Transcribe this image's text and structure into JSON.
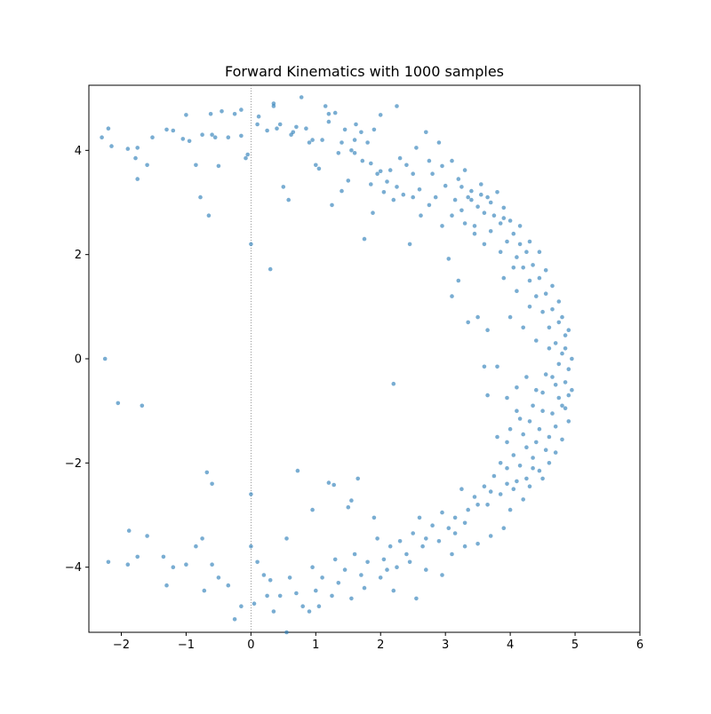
{
  "chart_data": {
    "type": "scatter",
    "title": "Forward Kinematics with 1000 samples",
    "xlabel": "",
    "ylabel": "",
    "xlim": [
      -2.5,
      6.0
    ],
    "ylim": [
      -5.25,
      5.25
    ],
    "xticks": [
      -2,
      -1,
      0,
      1,
      2,
      3,
      4,
      5,
      6
    ],
    "yticks": [
      -4,
      -2,
      0,
      2,
      4
    ],
    "grid": false,
    "legend": "none",
    "series": [
      {
        "color": "#1f77b4",
        "opacity": 0.6,
        "points": [
          [
            -2.3,
            4.25
          ],
          [
            -2.2,
            4.42
          ],
          [
            -2.15,
            4.08
          ],
          [
            -1.9,
            4.03
          ],
          [
            -1.75,
            4.05
          ],
          [
            -1.78,
            3.85
          ],
          [
            -1.75,
            3.45
          ],
          [
            -1.6,
            3.72
          ],
          [
            -1.52,
            4.25
          ],
          [
            -1.3,
            4.4
          ],
          [
            -1.2,
            4.38
          ],
          [
            -1.05,
            4.22
          ],
          [
            -1.0,
            4.68
          ],
          [
            -0.95,
            4.18
          ],
          [
            -0.85,
            3.72
          ],
          [
            -0.78,
            3.1
          ],
          [
            -0.75,
            4.3
          ],
          [
            -0.65,
            2.75
          ],
          [
            -0.62,
            4.7
          ],
          [
            -0.6,
            4.3
          ],
          [
            -0.55,
            4.25
          ],
          [
            -0.5,
            3.7
          ],
          [
            -0.45,
            4.75
          ],
          [
            -0.35,
            4.25
          ],
          [
            -0.25,
            4.7
          ],
          [
            -0.15,
            4.28
          ],
          [
            -0.15,
            4.78
          ],
          [
            -0.08,
            3.85
          ],
          [
            -0.05,
            3.92
          ],
          [
            0.0,
            2.2
          ],
          [
            0.12,
            4.65
          ],
          [
            0.25,
            4.38
          ],
          [
            0.3,
            1.72
          ],
          [
            0.35,
            4.9
          ],
          [
            0.4,
            4.42
          ],
          [
            0.45,
            4.5
          ],
          [
            0.5,
            3.3
          ],
          [
            0.58,
            3.05
          ],
          [
            0.62,
            4.3
          ],
          [
            0.7,
            4.45
          ],
          [
            0.78,
            5.02
          ],
          [
            0.85,
            4.42
          ],
          [
            0.95,
            4.2
          ],
          [
            1.0,
            3.72
          ],
          [
            1.05,
            3.65
          ],
          [
            1.1,
            4.2
          ],
          [
            1.15,
            4.85
          ],
          [
            1.2,
            4.55
          ],
          [
            1.25,
            2.95
          ],
          [
            1.3,
            4.72
          ],
          [
            1.35,
            3.95
          ],
          [
            1.4,
            3.22
          ],
          [
            1.45,
            4.4
          ],
          [
            1.5,
            3.42
          ],
          [
            1.55,
            4.0
          ],
          [
            1.6,
            4.2
          ],
          [
            1.62,
            4.5
          ],
          [
            1.7,
            4.35
          ],
          [
            1.72,
            3.8
          ],
          [
            1.75,
            2.3
          ],
          [
            1.8,
            4.15
          ],
          [
            1.85,
            3.75
          ],
          [
            1.88,
            2.8
          ],
          [
            1.9,
            4.4
          ],
          [
            1.95,
            3.55
          ],
          [
            2.0,
            4.68
          ],
          [
            2.05,
            3.2
          ],
          [
            2.1,
            3.4
          ],
          [
            2.15,
            3.62
          ],
          [
            2.2,
            3.05
          ],
          [
            2.25,
            4.85
          ],
          [
            2.3,
            3.85
          ],
          [
            2.35,
            3.15
          ],
          [
            2.4,
            3.72
          ],
          [
            2.45,
            2.2
          ],
          [
            2.5,
            3.55
          ],
          [
            2.55,
            4.05
          ],
          [
            2.6,
            3.25
          ],
          [
            2.62,
            2.75
          ],
          [
            2.7,
            4.35
          ],
          [
            2.75,
            3.8
          ],
          [
            2.8,
            3.55
          ],
          [
            2.85,
            3.1
          ],
          [
            2.9,
            4.15
          ],
          [
            2.95,
            3.7
          ],
          [
            3.0,
            3.32
          ],
          [
            3.05,
            1.92
          ],
          [
            3.1,
            3.8
          ],
          [
            3.15,
            3.05
          ],
          [
            3.2,
            3.45
          ],
          [
            3.25,
            2.85
          ],
          [
            3.3,
            3.62
          ],
          [
            3.35,
            3.1
          ],
          [
            3.4,
            3.22
          ],
          [
            3.45,
            2.55
          ],
          [
            3.5,
            2.92
          ],
          [
            3.55,
            3.35
          ],
          [
            3.6,
            2.8
          ],
          [
            3.65,
            3.1
          ],
          [
            3.7,
            2.45
          ],
          [
            3.75,
            2.75
          ],
          [
            3.8,
            3.2
          ],
          [
            3.85,
            2.6
          ],
          [
            3.9,
            2.9
          ],
          [
            3.95,
            2.25
          ],
          [
            4.0,
            2.65
          ],
          [
            4.05,
            2.4
          ],
          [
            4.1,
            1.95
          ],
          [
            4.15,
            2.2
          ],
          [
            4.2,
            1.75
          ],
          [
            4.25,
            2.05
          ],
          [
            4.3,
            1.5
          ],
          [
            4.35,
            1.8
          ],
          [
            4.4,
            1.2
          ],
          [
            4.45,
            1.55
          ],
          [
            4.5,
            0.9
          ],
          [
            4.55,
            1.25
          ],
          [
            4.6,
            0.6
          ],
          [
            4.65,
            0.95
          ],
          [
            4.7,
            0.3
          ],
          [
            4.75,
            0.7
          ],
          [
            4.8,
            0.1
          ],
          [
            4.85,
            0.45
          ],
          [
            4.9,
            -0.2
          ],
          [
            4.95,
            0.0
          ],
          [
            3.2,
            1.5
          ],
          [
            3.1,
            1.2
          ],
          [
            3.5,
            0.8
          ],
          [
            3.35,
            0.7
          ],
          [
            3.65,
            0.55
          ],
          [
            3.8,
            -0.15
          ],
          [
            3.65,
            -0.7
          ],
          [
            3.95,
            -0.75
          ],
          [
            4.1,
            -0.55
          ],
          [
            4.25,
            -0.35
          ],
          [
            4.4,
            -0.6
          ],
          [
            4.55,
            -0.3
          ],
          [
            4.7,
            -0.5
          ],
          [
            4.85,
            -0.45
          ],
          [
            4.9,
            -0.7
          ],
          [
            3.6,
            -0.15
          ],
          [
            2.2,
            -0.48
          ],
          [
            4.1,
            -1.0
          ],
          [
            4.3,
            -1.2
          ],
          [
            4.5,
            -1.0
          ],
          [
            4.7,
            -1.3
          ],
          [
            4.8,
            -0.9
          ],
          [
            4.6,
            -1.5
          ],
          [
            4.4,
            -1.6
          ],
          [
            4.2,
            -1.45
          ],
          [
            4.0,
            -1.35
          ],
          [
            3.8,
            -1.5
          ],
          [
            4.35,
            -1.9
          ],
          [
            4.55,
            -1.75
          ],
          [
            4.15,
            -2.05
          ],
          [
            3.95,
            -2.1
          ],
          [
            3.75,
            -2.25
          ],
          [
            4.25,
            -2.3
          ],
          [
            4.45,
            -2.15
          ],
          [
            4.05,
            -2.5
          ],
          [
            3.85,
            -2.6
          ],
          [
            3.6,
            -2.45
          ],
          [
            3.65,
            -2.8
          ],
          [
            3.45,
            -2.65
          ],
          [
            3.25,
            -2.5
          ],
          [
            3.35,
            -2.9
          ],
          [
            3.15,
            -3.05
          ],
          [
            2.95,
            -2.95
          ],
          [
            3.05,
            -3.25
          ],
          [
            2.8,
            -3.2
          ],
          [
            2.6,
            -3.05
          ],
          [
            2.7,
            -3.45
          ],
          [
            2.5,
            -3.35
          ],
          [
            2.3,
            -3.5
          ],
          [
            2.4,
            -3.75
          ],
          [
            2.15,
            -3.6
          ],
          [
            1.95,
            -3.45
          ],
          [
            2.05,
            -3.85
          ],
          [
            1.8,
            -3.9
          ],
          [
            1.6,
            -3.75
          ],
          [
            1.7,
            -4.15
          ],
          [
            1.45,
            -4.05
          ],
          [
            1.3,
            -3.85
          ],
          [
            1.35,
            -4.3
          ],
          [
            1.1,
            -4.2
          ],
          [
            0.95,
            -4.0
          ],
          [
            1.0,
            -4.45
          ],
          [
            0.8,
            -4.75
          ],
          [
            0.6,
            -4.2
          ],
          [
            0.55,
            -5.25
          ],
          [
            0.45,
            -4.55
          ],
          [
            0.35,
            -4.85
          ],
          [
            0.25,
            -4.55
          ],
          [
            0.2,
            -4.15
          ],
          [
            0.1,
            -3.9
          ],
          [
            0.05,
            -4.7
          ],
          [
            0.0,
            -3.6
          ],
          [
            0.0,
            -2.6
          ],
          [
            -0.15,
            -4.75
          ],
          [
            -0.25,
            -5.0
          ],
          [
            -0.35,
            -4.35
          ],
          [
            -0.5,
            -4.2
          ],
          [
            -0.6,
            -3.95
          ],
          [
            -0.6,
            -2.4
          ],
          [
            -0.68,
            -2.18
          ],
          [
            -0.72,
            -4.45
          ],
          [
            -0.75,
            -3.45
          ],
          [
            -0.85,
            -3.6
          ],
          [
            -1.0,
            -3.95
          ],
          [
            -1.2,
            -4.0
          ],
          [
            -1.3,
            -4.35
          ],
          [
            -1.35,
            -3.8
          ],
          [
            -1.6,
            -3.4
          ],
          [
            -1.75,
            -3.8
          ],
          [
            -1.9,
            -3.95
          ],
          [
            -2.2,
            -3.9
          ],
          [
            -1.88,
            -3.3
          ],
          [
            -2.05,
            -0.85
          ],
          [
            -1.68,
            -0.9
          ],
          [
            -2.25,
            0.0
          ],
          [
            0.55,
            -3.45
          ],
          [
            0.72,
            -2.15
          ],
          [
            0.95,
            -2.9
          ],
          [
            1.2,
            -2.38
          ],
          [
            1.28,
            -2.42
          ],
          [
            1.5,
            -2.85
          ],
          [
            1.55,
            -2.72
          ],
          [
            1.65,
            -2.3
          ],
          [
            1.9,
            -3.05
          ],
          [
            2.1,
            -4.05
          ],
          [
            2.2,
            -4.45
          ],
          [
            2.55,
            -4.6
          ],
          [
            2.7,
            -4.05
          ],
          [
            2.95,
            -4.15
          ],
          [
            3.1,
            -3.75
          ],
          [
            3.3,
            -3.6
          ],
          [
            3.5,
            -3.55
          ],
          [
            3.7,
            -3.4
          ],
          [
            3.9,
            -3.25
          ],
          [
            4.0,
            -2.9
          ],
          [
            4.2,
            -2.7
          ],
          [
            4.3,
            -2.45
          ],
          [
            4.5,
            -2.3
          ],
          [
            4.6,
            -2.0
          ],
          [
            4.7,
            -1.8
          ],
          [
            4.8,
            -1.55
          ],
          [
            4.9,
            -1.2
          ],
          [
            4.85,
            -0.95
          ],
          [
            4.95,
            -0.6
          ],
          [
            4.6,
            0.2
          ],
          [
            4.4,
            0.35
          ],
          [
            4.2,
            0.6
          ],
          [
            4.0,
            0.8
          ],
          [
            4.3,
            1.0
          ],
          [
            4.1,
            1.3
          ],
          [
            3.9,
            1.55
          ],
          [
            4.05,
            1.75
          ],
          [
            3.85,
            2.05
          ],
          [
            3.6,
            2.2
          ],
          [
            3.45,
            2.4
          ],
          [
            3.3,
            2.6
          ],
          [
            3.1,
            2.75
          ],
          [
            2.95,
            2.55
          ],
          [
            2.75,
            2.95
          ],
          [
            2.5,
            3.1
          ],
          [
            2.25,
            3.3
          ],
          [
            2.0,
            3.6
          ],
          [
            1.85,
            3.35
          ],
          [
            1.6,
            3.95
          ],
          [
            1.4,
            4.15
          ],
          [
            1.2,
            4.7
          ],
          [
            0.9,
            4.15
          ],
          [
            0.65,
            4.35
          ],
          [
            0.35,
            4.85
          ],
          [
            0.1,
            4.5
          ],
          [
            3.7,
            3.0
          ],
          [
            3.55,
            3.15
          ],
          [
            3.4,
            3.05
          ],
          [
            3.25,
            3.3
          ],
          [
            3.9,
            2.7
          ],
          [
            4.15,
            2.55
          ],
          [
            4.3,
            2.25
          ],
          [
            4.45,
            2.05
          ],
          [
            4.55,
            1.7
          ],
          [
            4.65,
            1.4
          ],
          [
            4.75,
            1.1
          ],
          [
            4.8,
            0.8
          ],
          [
            4.9,
            0.55
          ],
          [
            4.85,
            0.2
          ],
          [
            4.75,
            -0.1
          ],
          [
            4.65,
            -0.35
          ],
          [
            4.5,
            -0.65
          ],
          [
            4.35,
            -0.9
          ],
          [
            4.15,
            -1.15
          ],
          [
            3.95,
            -1.6
          ],
          [
            4.45,
            -1.35
          ],
          [
            4.65,
            -1.05
          ],
          [
            4.75,
            -0.75
          ],
          [
            4.25,
            -1.7
          ],
          [
            4.05,
            -1.85
          ],
          [
            3.85,
            -2.0
          ],
          [
            4.35,
            -2.1
          ],
          [
            4.1,
            -2.35
          ],
          [
            3.95,
            -2.4
          ],
          [
            3.7,
            -2.55
          ],
          [
            3.5,
            -2.8
          ],
          [
            3.3,
            -3.15
          ],
          [
            3.15,
            -3.35
          ],
          [
            2.9,
            -3.5
          ],
          [
            2.65,
            -3.6
          ],
          [
            2.45,
            -3.9
          ],
          [
            2.25,
            -4.0
          ],
          [
            2.0,
            -4.2
          ],
          [
            1.75,
            -4.4
          ],
          [
            1.55,
            -4.6
          ],
          [
            1.25,
            -4.55
          ],
          [
            1.05,
            -4.75
          ],
          [
            0.9,
            -4.85
          ],
          [
            0.7,
            -4.5
          ],
          [
            0.3,
            -4.25
          ]
        ]
      }
    ]
  }
}
